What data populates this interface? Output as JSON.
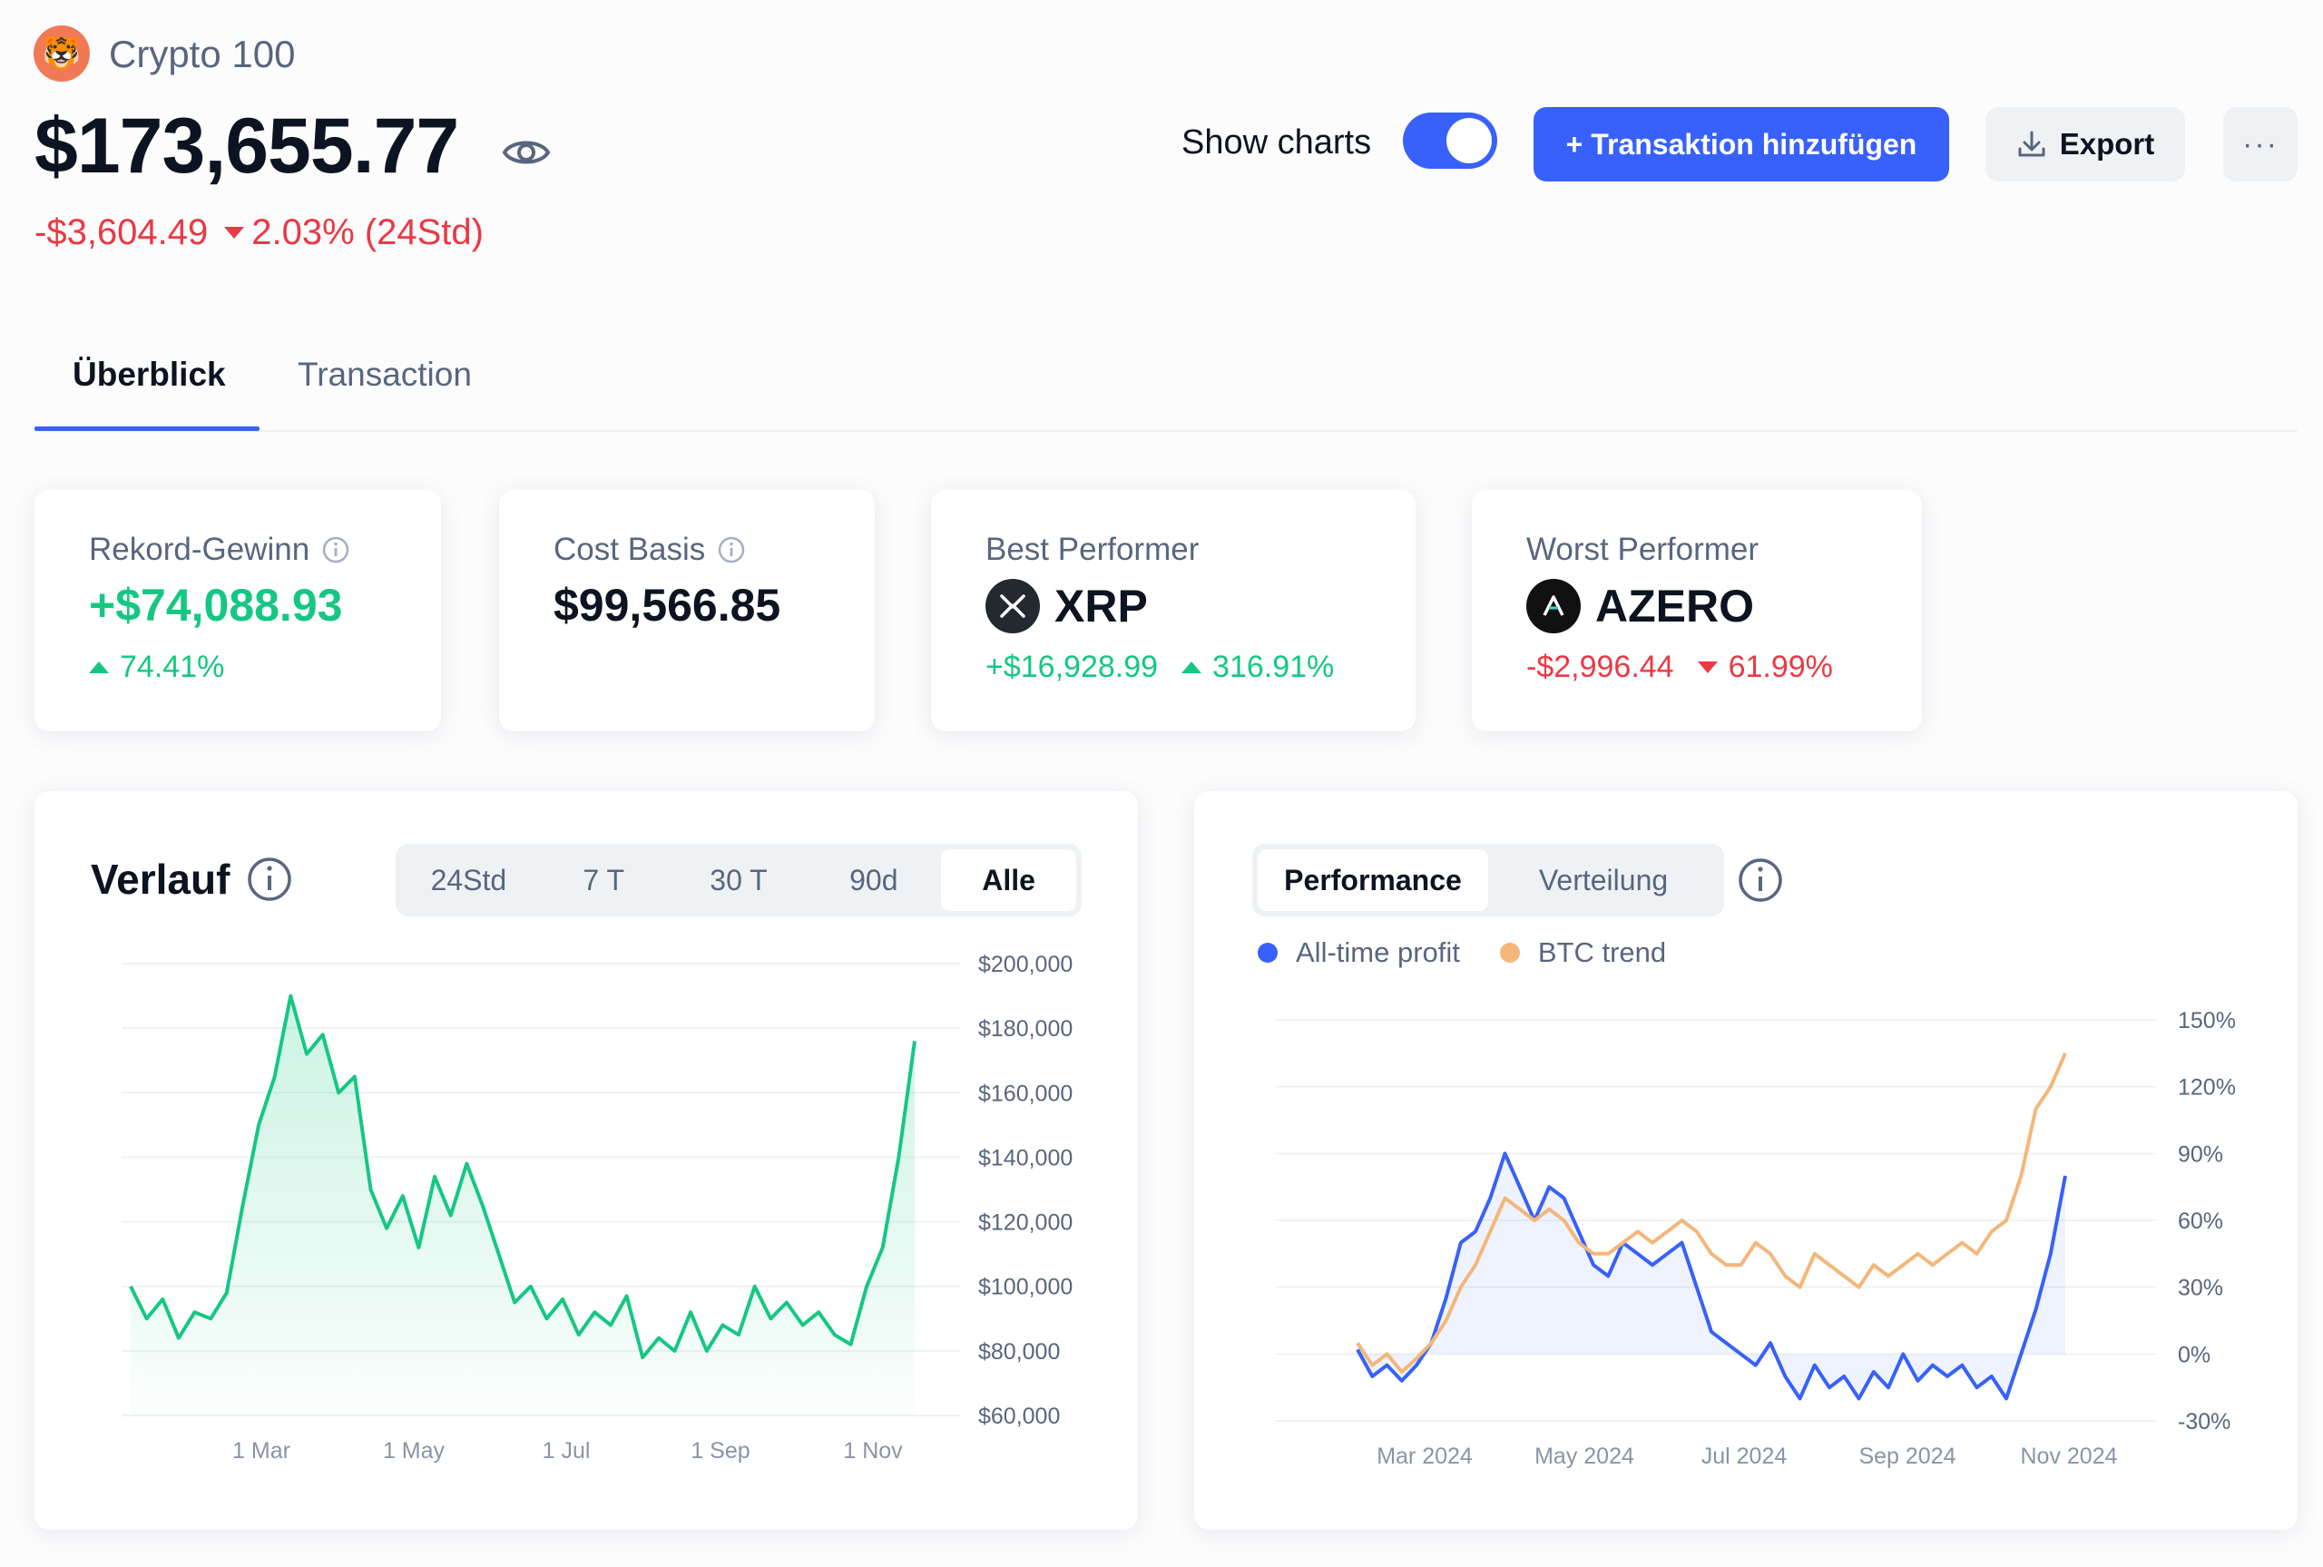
{
  "colors": {
    "accent": "#3861fb",
    "positive": "#16c784",
    "negative": "#ea3943",
    "btc": "#f3b77a"
  },
  "header": {
    "portfolio_icon": "tiger-emoji-icon",
    "portfolio_name": "Crypto 100",
    "total_value": "$173,655.77",
    "change_amount": "-$3,604.49",
    "change_percent": "2.03% (24Std)",
    "show_charts_label": "Show charts",
    "show_charts_on": true,
    "add_transaction_label": "+ Transaktion hinzufügen",
    "export_label": "Export",
    "more_label": "···"
  },
  "tabs": [
    {
      "label": "Überblick",
      "active": true
    },
    {
      "label": "Transaction",
      "active": false
    }
  ],
  "stats": {
    "record_profit": {
      "label": "Rekord-Gewinn",
      "value": "+$74,088.93",
      "percent": "74.41%"
    },
    "cost_basis": {
      "label": "Cost Basis",
      "value": "$99,566.85"
    },
    "best": {
      "label": "Best Performer",
      "coin": "XRP",
      "amount": "+$16,928.99",
      "percent": "316.91%"
    },
    "worst": {
      "label": "Worst Performer",
      "coin": "AZERO",
      "amount": "-$2,996.44",
      "percent": "61.99%"
    }
  },
  "history": {
    "title": "Verlauf",
    "ranges": [
      "24Std",
      "7 T",
      "30 T",
      "90d",
      "Alle"
    ],
    "active_range": "Alle"
  },
  "performance": {
    "tabs": [
      "Performance",
      "Verteilung"
    ],
    "active_tab": "Performance",
    "legend": [
      "All-time profit",
      "BTC trend"
    ]
  },
  "chart_data": [
    {
      "type": "area",
      "x_ticks": [
        "1 Mar",
        "1 May",
        "1 Jul",
        "1 Sep",
        "1 Nov"
      ],
      "y_ticks": [
        "$200,000",
        "$180,000",
        "$160,000",
        "$140,000",
        "$120,000",
        "$100,000",
        "$80,000",
        "$60,000"
      ],
      "ylim": [
        60000,
        200000
      ],
      "series": [
        {
          "values": [
            100000,
            90000,
            96000,
            84000,
            92000,
            90000,
            98000,
            125000,
            150000,
            165000,
            190000,
            172000,
            178000,
            160000,
            165000,
            130000,
            118000,
            128000,
            112000,
            134000,
            122000,
            138000,
            125000,
            110000,
            95000,
            100000,
            90000,
            96000,
            85000,
            92000,
            88000,
            97000,
            78000,
            84000,
            80000,
            92000,
            80000,
            88000,
            85000,
            100000,
            90000,
            95000,
            88000,
            92000,
            85000,
            82000,
            100000,
            112000,
            140000,
            176000
          ]
        }
      ]
    },
    {
      "type": "line",
      "x_ticks": [
        "Mar 2024",
        "May 2024",
        "Jul 2024",
        "Sep 2024",
        "Nov 2024"
      ],
      "y_ticks": [
        "150%",
        "120%",
        "90%",
        "60%",
        "30%",
        "0%",
        "-30%"
      ],
      "ylim": [
        -30,
        150
      ],
      "series": [
        {
          "name": "All-time profit",
          "values": [
            2,
            -10,
            -5,
            -12,
            -5,
            5,
            25,
            50,
            55,
            70,
            90,
            75,
            60,
            75,
            70,
            55,
            40,
            35,
            50,
            45,
            40,
            45,
            50,
            30,
            10,
            5,
            0,
            -5,
            5,
            -10,
            -20,
            -5,
            -15,
            -10,
            -20,
            -8,
            -15,
            0,
            -12,
            -5,
            -10,
            -5,
            -15,
            -10,
            -20,
            0,
            20,
            45,
            80
          ]
        },
        {
          "name": "BTC trend",
          "values": [
            5,
            -5,
            0,
            -8,
            -2,
            5,
            15,
            30,
            40,
            55,
            70,
            65,
            60,
            65,
            60,
            50,
            45,
            45,
            50,
            55,
            50,
            55,
            60,
            55,
            45,
            40,
            40,
            50,
            45,
            35,
            30,
            45,
            40,
            35,
            30,
            40,
            35,
            40,
            45,
            40,
            45,
            50,
            45,
            55,
            60,
            80,
            110,
            120,
            135
          ]
        }
      ]
    }
  ]
}
